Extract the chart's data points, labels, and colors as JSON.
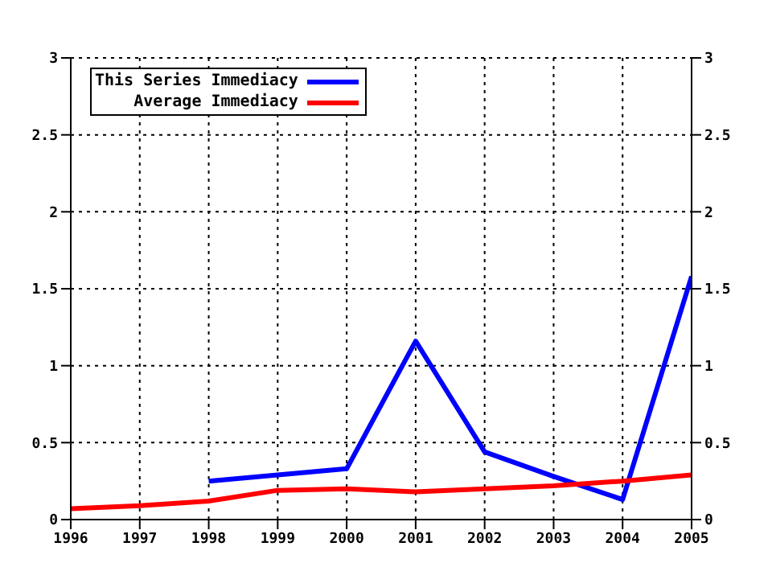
{
  "chart_data": {
    "type": "line",
    "x": [
      1996,
      1997,
      1998,
      1999,
      2000,
      2001,
      2002,
      2003,
      2004,
      2005
    ],
    "series": [
      {
        "name": "This Series Immediacy",
        "color": "#0000ff",
        "values": [
          null,
          null,
          0.25,
          0.29,
          0.33,
          1.16,
          0.44,
          0.28,
          0.13,
          1.58
        ]
      },
      {
        "name": "Average Immediacy",
        "color": "#ff0000",
        "values": [
          0.07,
          0.09,
          0.12,
          0.19,
          0.2,
          0.18,
          0.2,
          0.22,
          0.25,
          0.29
        ]
      }
    ],
    "xlim": [
      1996,
      2005
    ],
    "xticks": [
      1996,
      1997,
      1998,
      1999,
      2000,
      2001,
      2002,
      2003,
      2004,
      2005
    ],
    "ylim": [
      0,
      3
    ],
    "yticks": [
      0,
      0.5,
      1,
      1.5,
      2,
      2.5,
      3
    ],
    "y2lim": [
      0,
      3
    ],
    "y2ticks": [
      0,
      0.5,
      1,
      1.5,
      2,
      2.5,
      3
    ],
    "grid": true,
    "legend": "top left",
    "marker": "none",
    "line_style": "solid"
  }
}
